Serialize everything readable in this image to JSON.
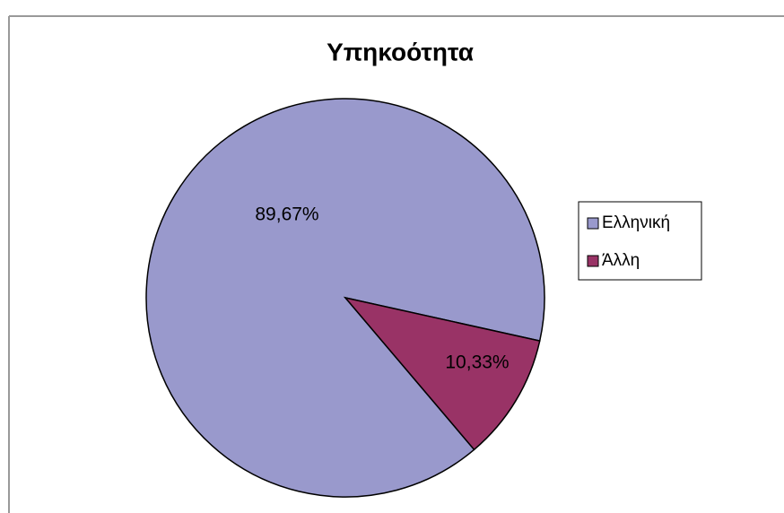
{
  "chart_data": {
    "type": "pie",
    "title": "Υπηκοότητα",
    "categories": [
      "Ελληνική",
      "Άλλη"
    ],
    "values": [
      89.67,
      10.33
    ],
    "value_labels": [
      "89,67%",
      "10,33%"
    ],
    "colors": [
      "#9999cc",
      "#993366"
    ],
    "legend": "right"
  }
}
